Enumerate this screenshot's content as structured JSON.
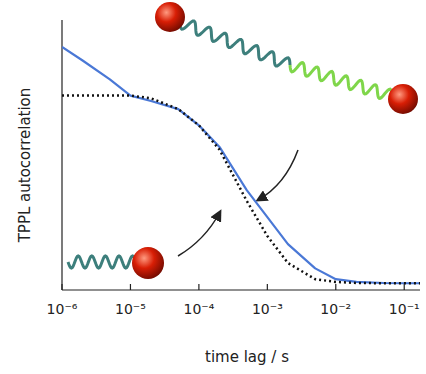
{
  "chart_data": {
    "type": "line",
    "x_label": "time lag / s",
    "y_label": "TPPL autocorrelation",
    "log": "x",
    "tick_labels": "x",
    "xlim": [
      1e-06,
      0.17
    ],
    "ylim": [
      0,
      1
    ],
    "xticks": [
      {
        "value": 1e-06,
        "label": "10⁻⁶"
      },
      {
        "value": 1e-05,
        "label": "10⁻⁵"
      },
      {
        "value": 0.0001,
        "label": "10⁻⁴"
      },
      {
        "value": 0.001,
        "label": "10⁻³"
      },
      {
        "value": 0.01,
        "label": "10⁻²"
      },
      {
        "value": 0.1,
        "label": "10⁻¹"
      }
    ],
    "x": [
      1e-06,
      2e-06,
      5e-06,
      1e-05,
      2e-05,
      5e-05,
      0.0001,
      0.0002,
      0.0005,
      0.001,
      0.002,
      0.005,
      0.01,
      0.02,
      0.05,
      0.1,
      0.17
    ],
    "series": [
      {
        "color": "#4a78d6",
        "line_style": "solid",
        "values": [
          0.9,
          0.85,
          0.78,
          0.72,
          0.7,
          0.67,
          0.61,
          0.53,
          0.37,
          0.27,
          0.17,
          0.08,
          0.04,
          0.03,
          0.026,
          0.025,
          0.025
        ]
      },
      {
        "color": "#111111",
        "line_style": "dotted",
        "values": [
          0.72,
          0.72,
          0.72,
          0.72,
          0.71,
          0.67,
          0.61,
          0.52,
          0.33,
          0.2,
          0.1,
          0.04,
          0.03,
          0.026,
          0.025,
          0.025,
          0.025
        ]
      }
    ]
  }
}
